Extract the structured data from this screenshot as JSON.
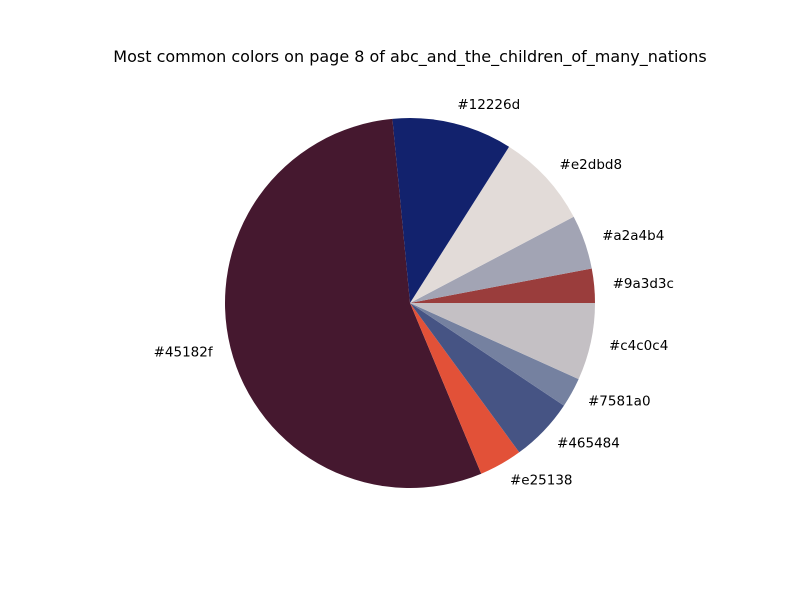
{
  "chart_data": {
    "type": "pie",
    "title": "Most common colors on page 8 of abc_and_the_children_of_many_nations",
    "start_angle_deg": 0,
    "direction": "counterclockwise",
    "slices": [
      {
        "label": "#9a3d3c",
        "value": 3.1,
        "color": "#9a3d3c"
      },
      {
        "label": "#a2a4b4",
        "value": 4.9,
        "color": "#a2a4b4"
      },
      {
        "label": "#e2dbd8",
        "value": 8.6,
        "color": "#e2dbd8"
      },
      {
        "label": "#12226d",
        "value": 10.9,
        "color": "#12226d"
      },
      {
        "label": "#45182f",
        "value": 56.8,
        "color": "#45182f"
      },
      {
        "label": "#e25138",
        "value": 3.9,
        "color": "#e25138"
      },
      {
        "label": "#465484",
        "value": 5.8,
        "color": "#465484"
      },
      {
        "label": "#7581a0",
        "value": 2.7,
        "color": "#7581a0"
      },
      {
        "label": "#c4c0c4",
        "value": 7.0,
        "color": "#c4c0c4"
      }
    ]
  }
}
